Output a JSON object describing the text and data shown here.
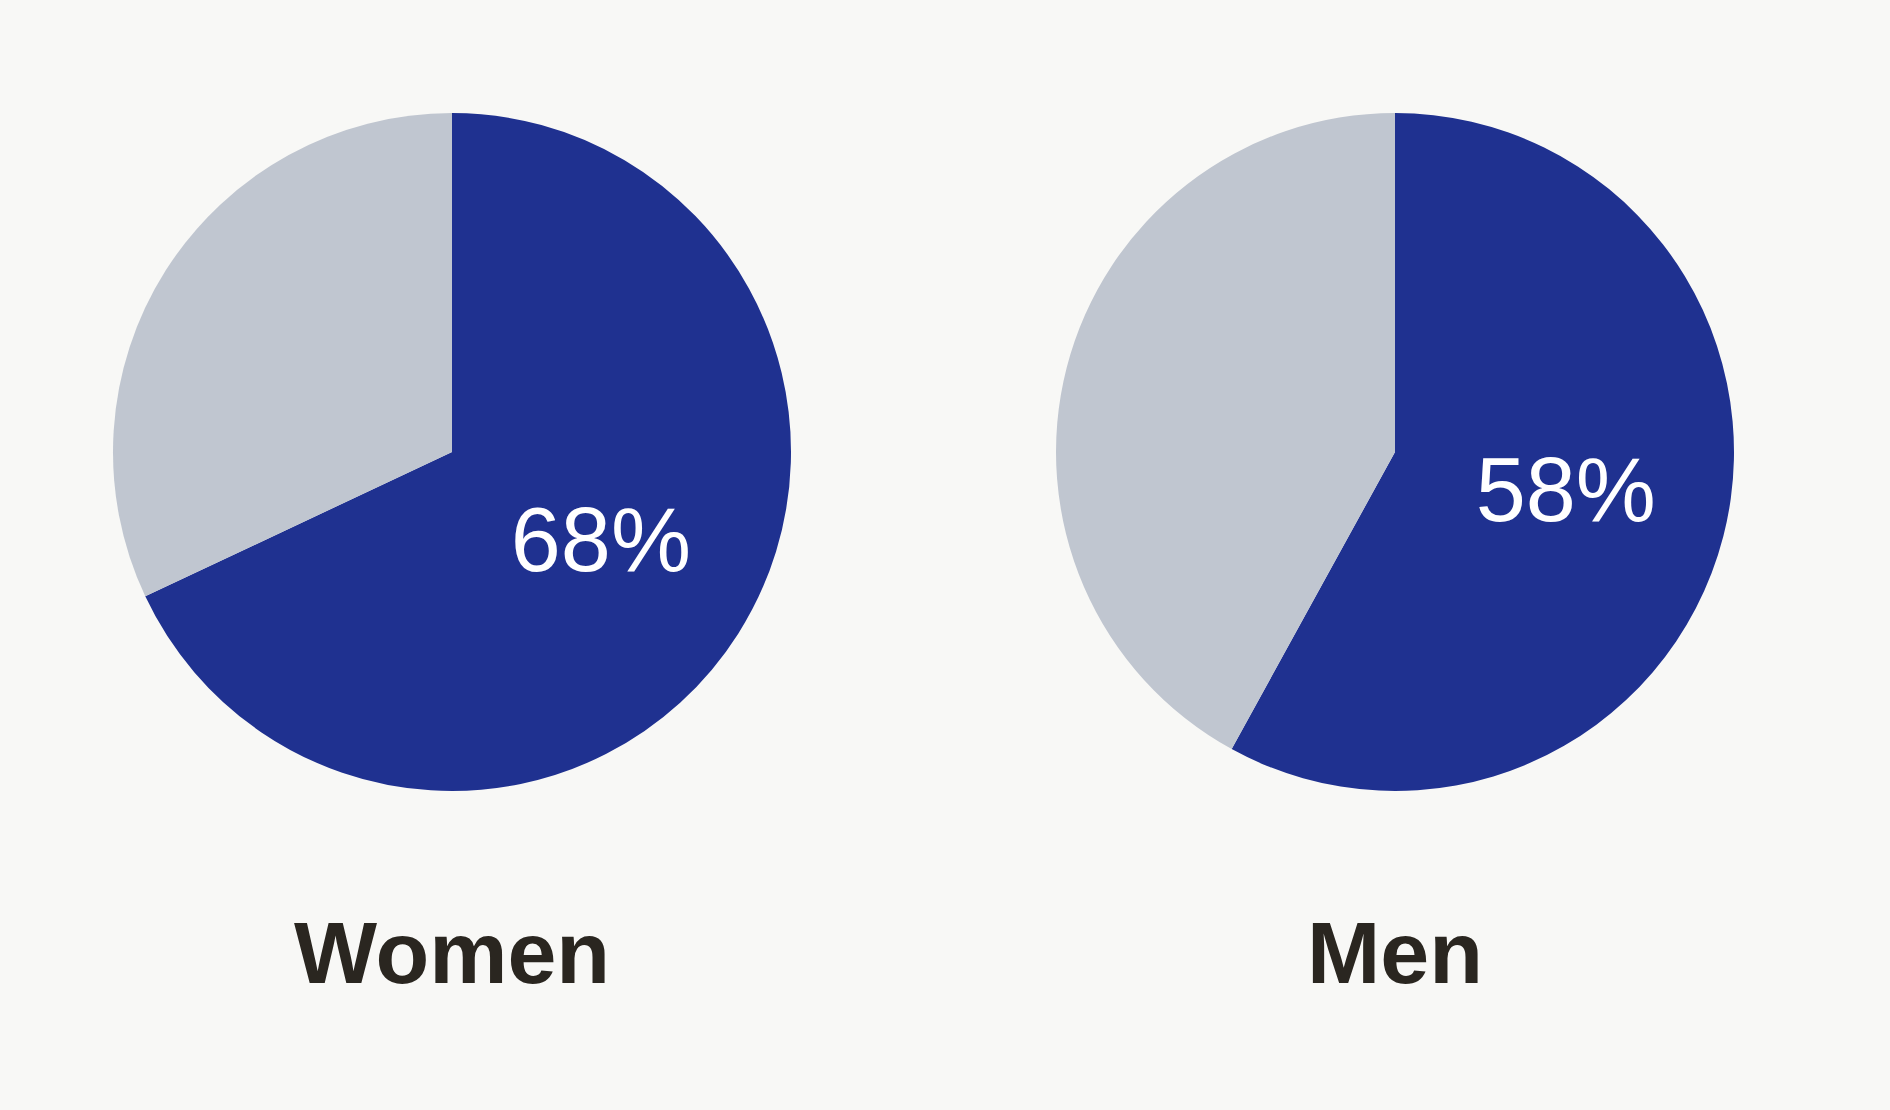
{
  "chart_data": [
    {
      "type": "pie",
      "title": "Women",
      "categories": [
        null,
        null
      ],
      "values": [
        68,
        32
      ],
      "colors": [
        "#1f3190",
        "#c0c6d0"
      ],
      "value_labels": [
        "68%",
        null
      ]
    },
    {
      "type": "pie",
      "title": "Men",
      "categories": [
        null,
        null
      ],
      "values": [
        58,
        42
      ],
      "colors": [
        "#1f3190",
        "#c0c6d0"
      ],
      "value_labels": [
        "58%",
        null
      ]
    }
  ]
}
